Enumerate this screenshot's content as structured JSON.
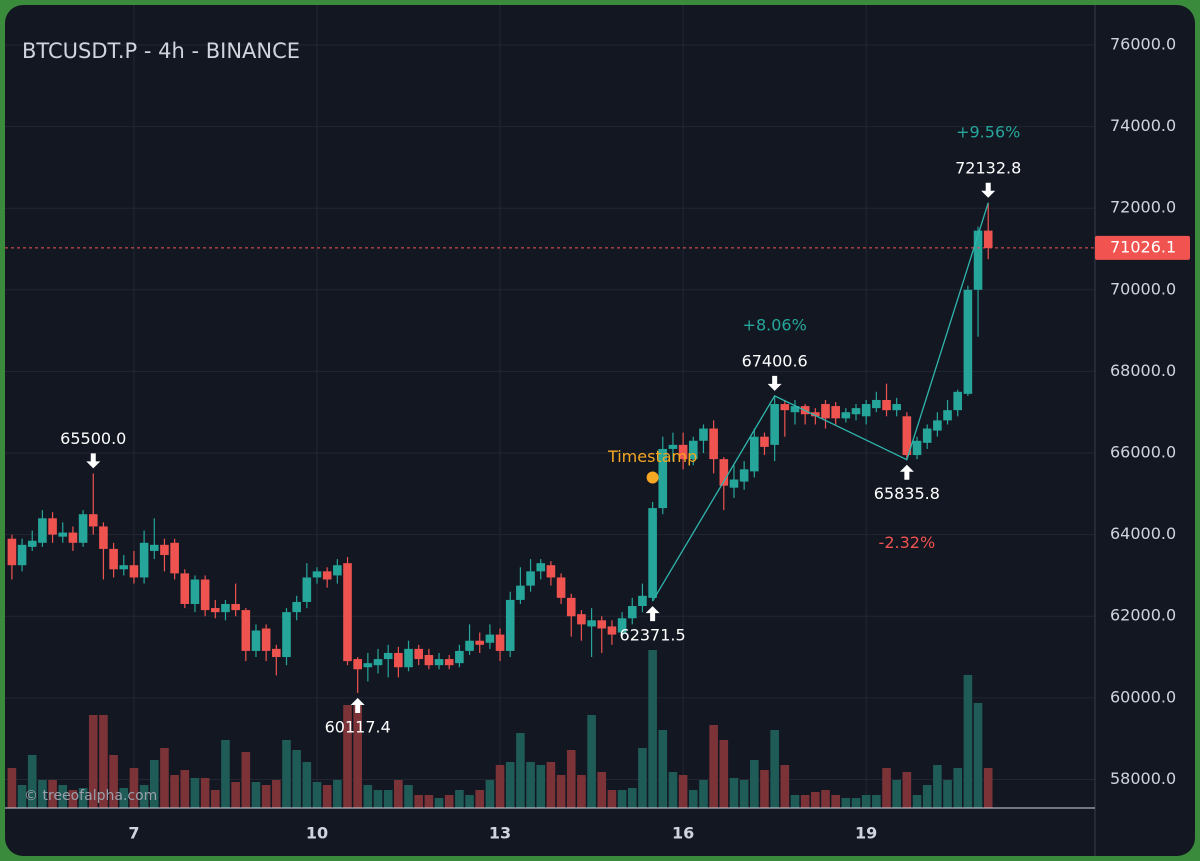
{
  "chart_data": {
    "type": "candlestick",
    "title": "BTCUSDT.P - 4h - BINANCE",
    "watermark": "© treeofalpha.com",
    "categories": [
      null,
      null,
      null,
      null,
      null,
      null,
      null,
      null,
      null,
      null,
      null,
      null,
      "7",
      null,
      null,
      null,
      null,
      null,
      null,
      null,
      null,
      null,
      null,
      null,
      null,
      null,
      null,
      null,
      null,
      null,
      "10",
      null,
      null,
      null,
      null,
      null,
      null,
      null,
      null,
      null,
      null,
      null,
      null,
      null,
      null,
      null,
      null,
      null,
      "13",
      null,
      null,
      null,
      null,
      null,
      null,
      null,
      null,
      null,
      null,
      null,
      null,
      null,
      null,
      null,
      null,
      null,
      "16",
      null,
      null,
      null,
      null,
      null,
      null,
      null,
      null,
      null,
      null,
      null,
      null,
      null,
      null,
      null,
      null,
      null,
      "19",
      null,
      null,
      null,
      null,
      null,
      null,
      null,
      null,
      null,
      null,
      null,
      null
    ],
    "open": [
      63900,
      63250,
      63700,
      63800,
      64400,
      63950,
      64050,
      63800,
      64500,
      64200,
      63650,
      63150,
      63250,
      62950,
      63600,
      63750,
      63800,
      63050,
      62300,
      62900,
      62200,
      62100,
      62300,
      62150,
      61150,
      61700,
      61200,
      61000,
      62100,
      62350,
      62950,
      63100,
      63000,
      63300,
      60950,
      60750,
      60800,
      60950,
      61100,
      60750,
      61200,
      61050,
      60800,
      60950,
      60850,
      61150,
      61400,
      61350,
      61550,
      61150,
      62400,
      62750,
      63100,
      63250,
      62950,
      62450,
      62050,
      61750,
      61900,
      61750,
      61600,
      61950,
      62250,
      62450,
      64650,
      66100,
      66200,
      65850,
      66300,
      66600,
      65850,
      65150,
      65300,
      65550,
      66400,
      66200,
      67200,
      67000,
      67150,
      67000,
      67200,
      67150,
      66850,
      66950,
      66900,
      67100,
      67300,
      67050,
      66900,
      65950,
      66250,
      66550,
      66800,
      67050,
      67450,
      70000,
      71450
    ],
    "high": [
      64000,
      63900,
      64100,
      64600,
      64550,
      64300,
      64200,
      64600,
      65500,
      64300,
      63800,
      63500,
      63600,
      64100,
      64400,
      63900,
      63900,
      63150,
      63000,
      63000,
      62400,
      62400,
      62800,
      62200,
      61800,
      61800,
      61300,
      62200,
      62500,
      63300,
      63200,
      63200,
      63400,
      63450,
      61000,
      61100,
      61200,
      61300,
      61250,
      61400,
      61300,
      61200,
      61100,
      61050,
      61300,
      61800,
      61600,
      61800,
      61700,
      62600,
      63200,
      63400,
      63400,
      63350,
      63050,
      62550,
      62150,
      62200,
      62000,
      61900,
      62100,
      62450,
      62800,
      64800,
      66400,
      66500,
      66500,
      66400,
      66700,
      66800,
      65900,
      65700,
      65800,
      66600,
      66500,
      67400.6,
      67300,
      67300,
      67200,
      67100,
      67300,
      67250,
      67100,
      67200,
      67300,
      67500,
      67700,
      67350,
      67000,
      66400,
      66700,
      67000,
      67300,
      67550,
      70100,
      71550,
      72132.8
    ],
    "low": [
      62900,
      63100,
      63600,
      63700,
      63800,
      63800,
      63600,
      63700,
      64000,
      62900,
      62950,
      63000,
      62800,
      62800,
      63400,
      63100,
      62900,
      62200,
      62100,
      62000,
      61950,
      61900,
      62000,
      60900,
      61000,
      60900,
      60550,
      60800,
      61900,
      62200,
      62800,
      62700,
      62800,
      60800,
      60117.4,
      60400,
      60600,
      60500,
      60500,
      60650,
      60800,
      60700,
      60700,
      60700,
      60750,
      61050,
      61100,
      61200,
      60900,
      61000,
      62300,
      62600,
      62900,
      62750,
      62300,
      61500,
      61400,
      61000,
      61100,
      61300,
      61450,
      61800,
      62100,
      62371.5,
      64500,
      65800,
      65600,
      65700,
      66000,
      65500,
      64600,
      64900,
      65100,
      65400,
      65950,
      65800,
      66400,
      66700,
      66700,
      66700,
      66600,
      66700,
      66750,
      66800,
      66700,
      67000,
      66900,
      66900,
      65835.8,
      65850,
      66100,
      66400,
      66700,
      66900,
      67400,
      68850,
      70750
    ],
    "close": [
      63250,
      63750,
      63850,
      64400,
      64000,
      64050,
      63800,
      64500,
      64200,
      63650,
      63150,
      63250,
      62950,
      63800,
      63750,
      63500,
      63050,
      62300,
      62900,
      62150,
      62100,
      62300,
      62150,
      61150,
      61650,
      61150,
      61000,
      62100,
      62350,
      62950,
      63100,
      62900,
      63250,
      60900,
      60700,
      60850,
      60950,
      61100,
      60750,
      61200,
      60950,
      60800,
      60950,
      60800,
      61150,
      61400,
      61300,
      61550,
      61150,
      62400,
      62750,
      63100,
      63300,
      62950,
      62450,
      62000,
      61800,
      61900,
      61700,
      61550,
      61950,
      62250,
      62500,
      64650,
      66100,
      66200,
      65850,
      66300,
      66600,
      65850,
      65200,
      65350,
      65600,
      66400,
      66150,
      67200,
      67050,
      67150,
      66950,
      66900,
      66850,
      66850,
      67000,
      67100,
      67200,
      67300,
      67050,
      67200,
      65950,
      66300,
      66600,
      66800,
      67050,
      67500,
      70000,
      71450,
      71026.1
    ],
    "volume": [
      40,
      23,
      53,
      28,
      28,
      23,
      18,
      20,
      93,
      93,
      53,
      20,
      40,
      23,
      48,
      60,
      33,
      38,
      30,
      30,
      18,
      68,
      26,
      56,
      26,
      23,
      28,
      68,
      58,
      46,
      26,
      23,
      28,
      103,
      103,
      23,
      18,
      18,
      28,
      23,
      13,
      13,
      10,
      13,
      18,
      13,
      18,
      28,
      43,
      46,
      75,
      46,
      43,
      46,
      33,
      58,
      33,
      93,
      36,
      18,
      18,
      20,
      60,
      158,
      78,
      36,
      33,
      18,
      28,
      83,
      68,
      30,
      28,
      48,
      38,
      78,
      43,
      13,
      13,
      16,
      18,
      13,
      10,
      10,
      13,
      13,
      40,
      28,
      36,
      13,
      23,
      43,
      28,
      40,
      133,
      105,
      40
    ],
    "up_color": "#26a69a",
    "down_color": "#ef5350",
    "volume_up_color": "#1f5b57",
    "volume_down_color": "#7b3337",
    "ylim": [
      57300,
      76980
    ],
    "yticks": [
      {
        "value": 58000,
        "label": "58000.0"
      },
      {
        "value": 60000,
        "label": "60000.0"
      },
      {
        "value": 62000,
        "label": "62000.0"
      },
      {
        "value": 64000,
        "label": "64000.0"
      },
      {
        "value": 66000,
        "label": "66000.0"
      },
      {
        "value": 68000,
        "label": "68000.0"
      },
      {
        "value": 70000,
        "label": "70000.0"
      },
      {
        "value": 72000,
        "label": "72000.0"
      },
      {
        "value": 74000,
        "label": "74000.0"
      },
      {
        "value": 76000,
        "label": "76000.0"
      }
    ],
    "grid": true,
    "last_price": {
      "value": 71026.1,
      "label": "71026.1",
      "color": "#f05350"
    },
    "price_markers": [
      {
        "index": 8,
        "value": 65500,
        "label": "65500.0",
        "side": "above"
      },
      {
        "index": 34,
        "value": 60117.4,
        "label": "60117.4",
        "side": "below"
      },
      {
        "index": 63,
        "value": 62371.5,
        "label": "62371.5",
        "side": "below"
      },
      {
        "index": 75,
        "value": 67400.6,
        "label": "67400.6",
        "side": "above"
      },
      {
        "index": 88,
        "value": 65835.8,
        "label": "65835.8",
        "side": "below"
      },
      {
        "index": 96,
        "value": 72132.8,
        "label": "72132.8",
        "side": "above"
      }
    ],
    "zigzag": {
      "color": "#2fb5ad",
      "points": [
        2,
        3,
        4,
        5
      ],
      "changes": [
        {
          "value": 8.06,
          "label": "+8.06%"
        },
        {
          "value": -2.32,
          "label": "-2.32%"
        },
        {
          "value": 9.56,
          "label": "+9.56%"
        }
      ]
    },
    "timestamp": {
      "index": 63,
      "value": 65400,
      "label": "Timestamp",
      "color": "#f5a623"
    }
  }
}
